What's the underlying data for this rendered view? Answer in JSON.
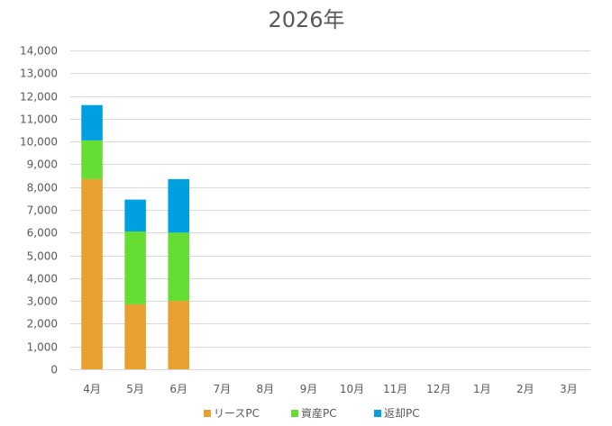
{
  "chart_data": {
    "type": "bar",
    "stacked": true,
    "title": "2026年",
    "categories": [
      "4月",
      "5月",
      "6月",
      "7月",
      "8月",
      "9月",
      "10月",
      "11月",
      "12月",
      "1月",
      "2月",
      "3月"
    ],
    "series": [
      {
        "name": "リースPC",
        "color": "#E8A030",
        "values": [
          8350,
          2850,
          3000,
          0,
          0,
          0,
          0,
          0,
          0,
          0,
          0,
          0
        ]
      },
      {
        "name": "資産PC",
        "color": "#66DD33",
        "values": [
          1700,
          3200,
          3000,
          0,
          0,
          0,
          0,
          0,
          0,
          0,
          0,
          0
        ]
      },
      {
        "name": "返却PC",
        "color": "#00A0E0",
        "values": [
          1550,
          1400,
          2350,
          0,
          0,
          0,
          0,
          0,
          0,
          0,
          0,
          0
        ]
      }
    ],
    "ylim": [
      0,
      14000
    ],
    "yticks": [
      0,
      1000,
      2000,
      3000,
      4000,
      5000,
      6000,
      7000,
      8000,
      9000,
      10000,
      11000,
      12000,
      13000,
      14000
    ],
    "ytick_labels": [
      "0",
      "1,000",
      "2,000",
      "3,000",
      "4,000",
      "5,000",
      "6,000",
      "7,000",
      "8,000",
      "9,000",
      "10,000",
      "11,000",
      "12,000",
      "13,000",
      "14,000"
    ],
    "grid": true,
    "legend_position": "bottom"
  }
}
